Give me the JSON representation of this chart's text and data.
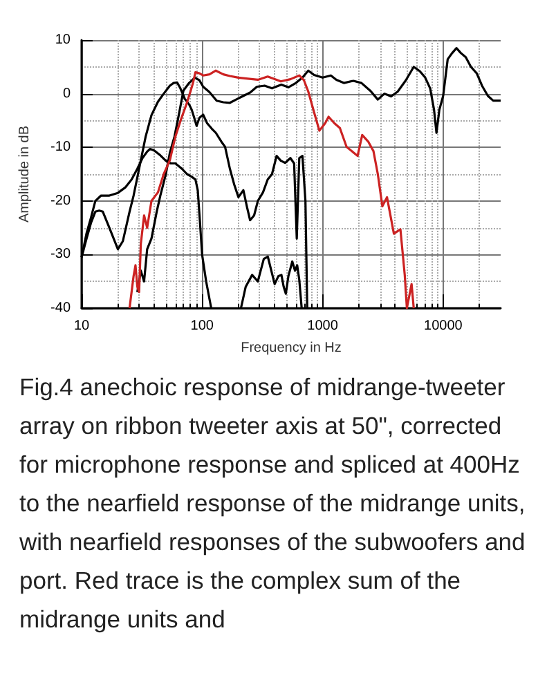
{
  "chart_data": {
    "type": "line",
    "xlabel": "Frequency in Hz",
    "ylabel": "Amplitude in dB",
    "log": "x",
    "xlim": [
      10,
      30000
    ],
    "xticks": [
      10,
      100,
      1000,
      10000
    ],
    "ylim": [
      -40,
      10
    ],
    "yticks": [
      -40,
      -30,
      -20,
      -10,
      0,
      10
    ],
    "grid": true,
    "marker": "none",
    "line_style": "solid",
    "series": [
      {
        "color": "#000000",
        "x": [
          29,
          31,
          33,
          35,
          38,
          42,
          45,
          50,
          54,
          59,
          64,
          70,
          78,
          87,
          95,
          102,
          115,
          132,
          150,
          170,
          195,
          220,
          250,
          285,
          330,
          380,
          454,
          520,
          600,
          680,
          760,
          850,
          1000,
          1170,
          1300,
          1500,
          1800,
          2100,
          2500,
          2870,
          3250,
          3700,
          4200,
          4900,
          5700,
          6400,
          7100,
          7800,
          8400,
          8800,
          9300,
          10000,
          10900,
          11800,
          12900,
          14000,
          15400,
          17000,
          19000,
          21000,
          23500,
          26000,
          30000
        ],
        "values": [
          -37,
          -33,
          -35,
          -29,
          -27,
          -22,
          -19,
          -15,
          -11,
          -8,
          -4,
          0.6,
          2,
          3,
          2.5,
          1.3,
          0.3,
          -1.3,
          -1.6,
          -1.7,
          -1,
          -0.4,
          0.2,
          1.3,
          1.5,
          1,
          1.7,
          1.2,
          2,
          3,
          4.3,
          3.5,
          3,
          3.4,
          2.6,
          2,
          2.4,
          2,
          0.5,
          -1.1,
          0,
          -0.5,
          0.4,
          2.5,
          5,
          4.2,
          3,
          1,
          -3,
          -7.3,
          -3,
          -0.4,
          6.4,
          7.5,
          8.5,
          7.6,
          6.8,
          5,
          3.8,
          1.5,
          -0.4,
          -1.3,
          -1.3
        ]
      },
      {
        "color": "#000000",
        "x": [
          10,
          11,
          12,
          13,
          14,
          15,
          17,
          20,
          22,
          25,
          27,
          30,
          34,
          38,
          43,
          48,
          54,
          58,
          62,
          66,
          72,
          78,
          82,
          86,
          90,
          95,
          102,
          110,
          120,
          130,
          145,
          155,
          170,
          185,
          200,
          220,
          235,
          250,
          270,
          290,
          320,
          350,
          380,
          415,
          450,
          490,
          540,
          580,
          610,
          640,
          680,
          720,
          745
        ],
        "values": [
          -30.5,
          -27,
          -24,
          -22,
          -21.8,
          -22,
          -25,
          -29,
          -27.5,
          -22,
          -19,
          -14,
          -8,
          -4,
          -1.5,
          0,
          1.5,
          2,
          2.1,
          1,
          -1,
          -2,
          -3,
          -4.5,
          -6,
          -4.5,
          -3.9,
          -5.5,
          -6.5,
          -7.3,
          -9,
          -9.9,
          -14,
          -17,
          -19.3,
          -18,
          -21,
          -23.6,
          -22.7,
          -20,
          -18.4,
          -16,
          -15,
          -11.6,
          -12.5,
          -12.9,
          -12,
          -13,
          -27,
          -12,
          -11.6,
          -20,
          -40
        ]
      },
      {
        "color": "#000000",
        "x": [
          10,
          11,
          12,
          13,
          14.5,
          17,
          20,
          23,
          26,
          29,
          32,
          35,
          37,
          40,
          45,
          50,
          55,
          60,
          68,
          75,
          82,
          88,
          92,
          96,
          100,
          108,
          119
        ],
        "values": [
          -30.5,
          -26,
          -23,
          -20,
          -19,
          -19,
          -18.5,
          -17.5,
          -16,
          -14,
          -12,
          -10.8,
          -10.3,
          -10.6,
          -11.5,
          -12.5,
          -13,
          -13,
          -14,
          -15,
          -15.5,
          -16,
          -18,
          -24,
          -30,
          -35,
          -40
        ]
      },
      {
        "color": "#000000",
        "x": [
          210,
          230,
          260,
          290,
          325,
          351,
          375,
          400,
          430,
          455,
          475,
          495,
          520,
          560,
          590,
          615,
          640,
          670
        ],
        "values": [
          -40,
          -36,
          -33.8,
          -35,
          -30.8,
          -30.4,
          -33,
          -35.5,
          -34,
          -33.8,
          -36,
          -37.3,
          -34,
          -31.3,
          -33,
          -32,
          -34.7,
          -40
        ]
      },
      {
        "color": "#cc2222",
        "x": [
          25,
          27,
          28,
          29,
          30,
          31,
          33,
          35,
          38,
          43,
          48,
          54,
          60,
          67,
          74,
          80,
          84,
          88,
          95,
          102,
          115,
          130,
          150,
          170,
          200,
          240,
          290,
          350,
          450,
          540,
          640,
          700,
          760,
          850,
          940,
          1050,
          1120,
          1250,
          1390,
          1580,
          1950,
          2130,
          2400,
          2640,
          2870,
          3130,
          3420,
          3900,
          4420,
          4800,
          5000,
          5470,
          5700
        ],
        "values": [
          -40,
          -34,
          -32,
          -36,
          -37,
          -28,
          -22.7,
          -25,
          -20,
          -18.4,
          -15,
          -12.4,
          -8,
          -4.7,
          -2,
          0.4,
          2,
          4,
          3.8,
          3.4,
          3.6,
          4.3,
          3.6,
          3.3,
          3,
          2.8,
          2.6,
          3.2,
          2.3,
          2.7,
          3.4,
          2.5,
          0.4,
          -3.5,
          -6.9,
          -5.5,
          -4.3,
          -5.5,
          -6.4,
          -9.9,
          -11.6,
          -7.7,
          -9,
          -10.7,
          -15,
          -21,
          -19.3,
          -26.1,
          -25.3,
          -33.8,
          -40,
          -35.5,
          -40
        ]
      }
    ],
    "annotations": [
      "Fig.4 anechoic response of midrange-tweeter array on ribbon tweeter axis at 50\", corrected for microphone response and spliced at 400Hz to the nearfield response of the midrange units, with nearfield responses of the subwoofers and port. Red trace is the complex sum of the midrange units and"
    ]
  }
}
